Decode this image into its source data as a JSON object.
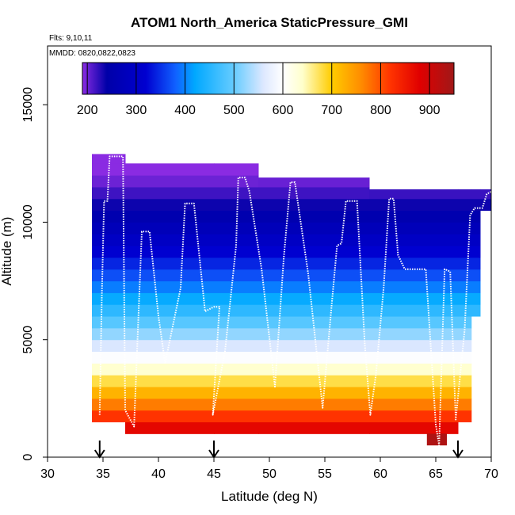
{
  "chart_data": {
    "type": "heatmap",
    "title": "ATOM1 North_America StaticPressure_GMI",
    "flights_note": "Flts: 9,10,11",
    "dates_note": "MMDD: 0820,0822,0823",
    "xlabel": "Latitude (deg N)",
    "ylabel": "Altitude (m)",
    "xlim": [
      30,
      70
    ],
    "ylim": [
      0,
      17500
    ],
    "x_ticks": [
      30,
      35,
      40,
      45,
      50,
      55,
      60,
      65,
      70
    ],
    "y_ticks": [
      0,
      5000,
      10000,
      15000
    ],
    "colorbar": {
      "min": 190,
      "max": 950,
      "ticks": [
        200,
        300,
        400,
        500,
        600,
        700,
        800,
        900
      ],
      "stops": [
        {
          "v": 190,
          "c": "#8a2be2"
        },
        {
          "v": 240,
          "c": "#0000a8"
        },
        {
          "v": 320,
          "c": "#0000d0"
        },
        {
          "v": 380,
          "c": "#1060ff"
        },
        {
          "v": 420,
          "c": "#00a8ff"
        },
        {
          "v": 500,
          "c": "#66ccff"
        },
        {
          "v": 560,
          "c": "#dde8ff"
        },
        {
          "v": 600,
          "c": "#ffffff"
        },
        {
          "v": 640,
          "c": "#ffffcc"
        },
        {
          "v": 700,
          "c": "#ffcc00"
        },
        {
          "v": 760,
          "c": "#ff8c00"
        },
        {
          "v": 820,
          "c": "#ff3300"
        },
        {
          "v": 880,
          "c": "#e00000"
        },
        {
          "v": 950,
          "c": "#a01818"
        }
      ]
    },
    "profile_columns": [
      {
        "x0": 34.0,
        "x1": 37.0,
        "alt_min": 1500,
        "alt_max": 12900
      },
      {
        "x0": 37.0,
        "x1": 45.0,
        "alt_min": 1000,
        "alt_max": 12500
      },
      {
        "x0": 45.0,
        "x1": 49.0,
        "alt_min": 1000,
        "alt_max": 12500
      },
      {
        "x0": 49.0,
        "x1": 59.0,
        "alt_min": 1000,
        "alt_max": 11900
      },
      {
        "x0": 59.0,
        "x1": 67.0,
        "alt_min": 1000,
        "alt_max": 11400
      },
      {
        "x0": 67.0,
        "x1": 68.2,
        "alt_min": 1500,
        "alt_max": 11400
      },
      {
        "x0": 68.2,
        "x1": 69.0,
        "alt_min": 6000,
        "alt_max": 11400
      },
      {
        "x0": 69.0,
        "x1": 70.0,
        "alt_min": 10500,
        "alt_max": 11400
      }
    ],
    "extra_cell": {
      "x0": 64.2,
      "x1": 66.0,
      "alt_min": 500,
      "alt_max": 1000,
      "value": 935
    },
    "flight_track": [
      [
        34.7,
        1800
      ],
      [
        34.9,
        7000
      ],
      [
        35.1,
        10900
      ],
      [
        35.4,
        10900
      ],
      [
        35.6,
        12800
      ],
      [
        36.8,
        12800
      ],
      [
        37.0,
        2000
      ],
      [
        37.8,
        1300
      ],
      [
        38.5,
        9600
      ],
      [
        39.2,
        9600
      ],
      [
        40.0,
        6000
      ],
      [
        40.6,
        4000
      ],
      [
        42.0,
        7200
      ],
      [
        42.4,
        10800
      ],
      [
        43.2,
        10800
      ],
      [
        44.2,
        6200
      ],
      [
        45.0,
        6400
      ],
      [
        45.5,
        6400
      ],
      [
        44.9,
        1800
      ],
      [
        46.0,
        4500
      ],
      [
        47.0,
        9000
      ],
      [
        47.2,
        11900
      ],
      [
        47.8,
        11900
      ],
      [
        48.2,
        11300
      ],
      [
        49.3,
        8000
      ],
      [
        50.5,
        3000
      ],
      [
        51.3,
        8500
      ],
      [
        51.9,
        11700
      ],
      [
        52.3,
        11700
      ],
      [
        53.5,
        7800
      ],
      [
        54.8,
        2100
      ],
      [
        55.6,
        6400
      ],
      [
        56.1,
        9000
      ],
      [
        56.5,
        9100
      ],
      [
        56.9,
        10900
      ],
      [
        57.9,
        10900
      ],
      [
        58.6,
        4800
      ],
      [
        59.1,
        1800
      ],
      [
        59.6,
        3500
      ],
      [
        60.3,
        7200
      ],
      [
        60.8,
        11000
      ],
      [
        61.2,
        11000
      ],
      [
        61.6,
        8600
      ],
      [
        62.2,
        8000
      ],
      [
        64.1,
        8000
      ],
      [
        65.0,
        1400
      ],
      [
        65.3,
        500
      ],
      [
        65.8,
        8000
      ],
      [
        66.3,
        7900
      ],
      [
        66.8,
        1600
      ],
      [
        67.6,
        5400
      ],
      [
        68.1,
        10300
      ],
      [
        68.5,
        10600
      ],
      [
        69.2,
        10600
      ],
      [
        69.6,
        11200
      ],
      [
        70.0,
        11300
      ]
    ],
    "arrow_latitudes": [
      34.7,
      45.0,
      67.0
    ]
  }
}
